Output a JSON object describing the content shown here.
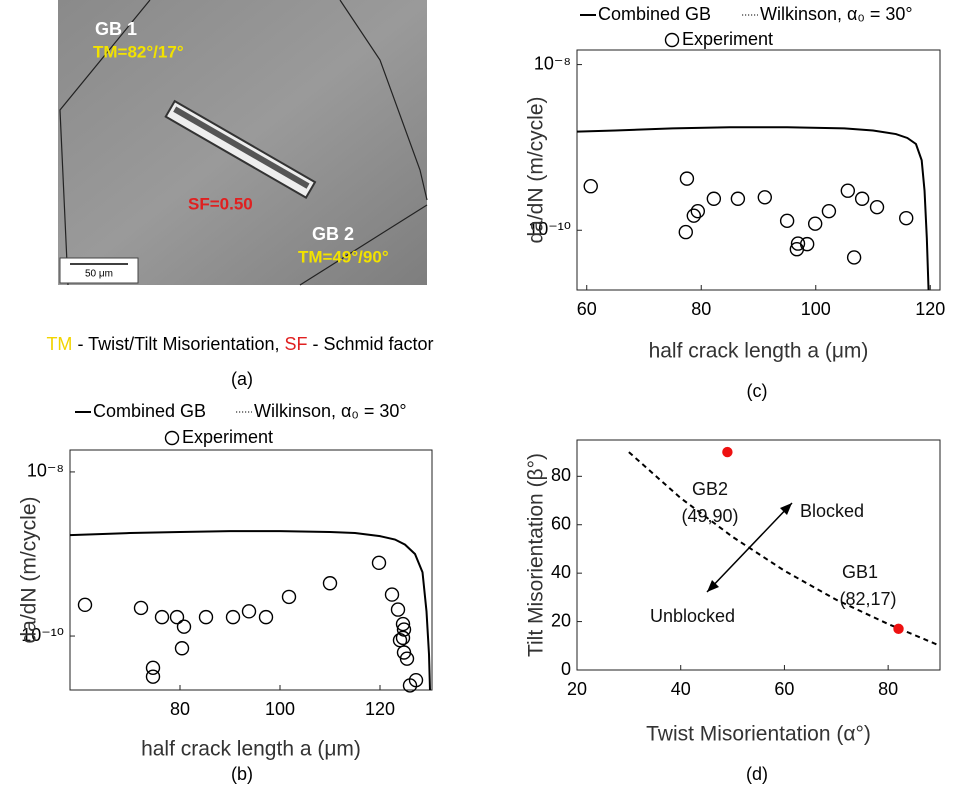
{
  "micrograph": {
    "gb1": "GB 1",
    "tm1": "TM=82°/17°",
    "sf": "SF=0.50",
    "gb2": "GB 2",
    "tm2": "TM=49°/90°",
    "scale": "50 μm",
    "legend_tm": "TM",
    "legend_tm_text": " - Twist/Tilt Misorientation, ",
    "legend_sf": "SF",
    "legend_sf_text": " - Schmid factor",
    "caption": "(a)"
  },
  "chart_data": [
    {
      "type": "line",
      "caption": "(b)",
      "xlabel": "half crack length a (μm)",
      "ylabel": "da/dN (m/cycle)",
      "ylog": true,
      "xlim": [
        58,
        130.4
      ],
      "xticks": [
        80,
        100,
        120
      ],
      "ylim": [
        2.2e-11,
        1.85e-08
      ],
      "yticks": [
        {
          "value": 1e-10,
          "label": "10⁻¹⁰"
        },
        {
          "value": 1e-08,
          "label": "10⁻⁸"
        }
      ],
      "series": [
        {
          "name": "Combined GB",
          "color": "#000000",
          "style": "solid",
          "x": [
            58,
            70,
            80,
            90,
            100,
            110,
            115,
            120,
            123,
            125,
            127,
            128.5,
            129.3,
            129.8,
            130
          ],
          "values": [
            1.7e-09,
            1.8e-09,
            1.85e-09,
            1.9e-09,
            1.9e-09,
            1.85e-09,
            1.8e-09,
            1.65e-09,
            1.5e-09,
            1.3e-09,
            1e-09,
            6e-10,
            2e-10,
            6e-11,
            2.2e-11
          ]
        },
        {
          "name": "Wilkinson, α₀ = 30°",
          "color": "#000000",
          "style": "dotted",
          "x": [
            58,
            70,
            80,
            90,
            100,
            110,
            115,
            120,
            123,
            125,
            127,
            128.5,
            129.3,
            129.8,
            130
          ],
          "values": [
            1.7e-09,
            1.8e-09,
            1.85e-09,
            1.9e-09,
            1.9e-09,
            1.85e-09,
            1.8e-09,
            1.65e-09,
            1.5e-09,
            1.3e-09,
            1e-09,
            6e-10,
            2e-10,
            6e-11,
            2.2e-11
          ]
        },
        {
          "name": "Experiment",
          "type": "scatter",
          "color": "#000000",
          "marker": "open",
          "x": [
            61.0,
            72.2,
            74.6,
            74.6,
            76.4,
            79.4,
            80.8,
            80.4,
            85.2,
            90.6,
            93.8,
            97.2,
            101.8,
            110.0,
            119.8,
            122.4,
            123.6,
            124.6,
            124.8,
            124.0,
            124.6,
            124.8,
            125.4,
            126.0,
            127.2
          ],
          "values": [
            2.4e-10,
            2.2e-10,
            4.1e-11,
            3.2e-11,
            1.7e-10,
            1.7e-10,
            1.3e-10,
            7.1e-11,
            1.7e-10,
            1.7e-10,
            2e-10,
            1.7e-10,
            3e-10,
            4.4e-10,
            7.8e-10,
            3.2e-10,
            2.1e-10,
            1.4e-10,
            1.2e-10,
            8.9e-11,
            9.5e-11,
            6.3e-11,
            5.3e-11,
            2.5e-11,
            2.9e-11
          ]
        }
      ]
    },
    {
      "type": "line",
      "caption": "(c)",
      "xlabel": "half crack length a (μm)",
      "ylabel": "da/dN (m/cycle)",
      "ylog": true,
      "xlim": [
        58.3,
        121.7
      ],
      "xticks": [
        60,
        80,
        100,
        120
      ],
      "ylim": [
        1.9e-11,
        1.5e-08
      ],
      "yticks": [
        {
          "value": 1e-10,
          "label": "10⁻¹⁰"
        },
        {
          "value": 1e-08,
          "label": "10⁻⁸"
        }
      ],
      "series": [
        {
          "name": "Combined GB",
          "color": "#000000",
          "style": "solid",
          "x": [
            58.3,
            65,
            75,
            85,
            95,
            105,
            110,
            114,
            116,
            117.5,
            118.5,
            119,
            119.4,
            119.7
          ],
          "values": [
            1.55e-09,
            1.6e-09,
            1.7e-09,
            1.75e-09,
            1.75e-09,
            1.7e-09,
            1.6e-09,
            1.45e-09,
            1.3e-09,
            1.1e-09,
            7e-10,
            3e-10,
            8e-11,
            1.9e-11
          ]
        },
        {
          "name": "Wilkinson, α₀ = 30°",
          "color": "#000000",
          "style": "dotted",
          "x": [
            58.3,
            65,
            75,
            85,
            95,
            105,
            110,
            114,
            116,
            117.5,
            118.5,
            119,
            119.4,
            119.7
          ],
          "values": [
            1.55e-09,
            1.6e-09,
            1.7e-09,
            1.75e-09,
            1.75e-09,
            1.7e-09,
            1.6e-09,
            1.45e-09,
            1.3e-09,
            1.1e-09,
            7e-10,
            3e-10,
            8e-11,
            1.9e-11
          ]
        },
        {
          "name": "Experiment",
          "type": "scatter",
          "color": "#000000",
          "marker": "open",
          "x": [
            60.7,
            77.5,
            77.3,
            78.7,
            79.4,
            82.2,
            86.4,
            91.1,
            95.0,
            96.9,
            96.7,
            98.5,
            99.9,
            102.3,
            105.6,
            108.1,
            110.7,
            115.8,
            106.7
          ],
          "values": [
            3.4e-10,
            4.2e-10,
            9.5e-11,
            1.5e-10,
            1.7e-10,
            2.4e-10,
            2.4e-10,
            2.5e-10,
            1.3e-10,
            6.9e-11,
            5.9e-11,
            6.8e-11,
            1.2e-10,
            1.7e-10,
            3e-10,
            2.4e-10,
            1.9e-10,
            1.4e-10,
            4.7e-11
          ]
        }
      ]
    },
    {
      "type": "line",
      "caption": "(d)",
      "xlabel": "Twist Misorientation (α°)",
      "ylabel": "Tilt Misorientation (β°)",
      "ylog": false,
      "xlim": [
        20,
        90
      ],
      "xticks": [
        20,
        40,
        60,
        80
      ],
      "ylim": [
        0,
        95
      ],
      "yticks": [
        0,
        20,
        40,
        60,
        80
      ],
      "annotations": [
        "GB2",
        "(49,90)",
        "Blocked",
        "GB1",
        "(82,17)",
        "Unblocked"
      ],
      "series": [
        {
          "color": "#000000",
          "style": "dashed",
          "x": [
            30,
            40,
            50,
            60,
            70,
            80,
            90
          ],
          "values": [
            90,
            71,
            55,
            41,
            29,
            19,
            10
          ]
        },
        {
          "type": "scatter",
          "color": "#ee1111",
          "marker": "filled",
          "x": [
            49,
            82
          ],
          "values": [
            90,
            17
          ]
        }
      ]
    }
  ]
}
